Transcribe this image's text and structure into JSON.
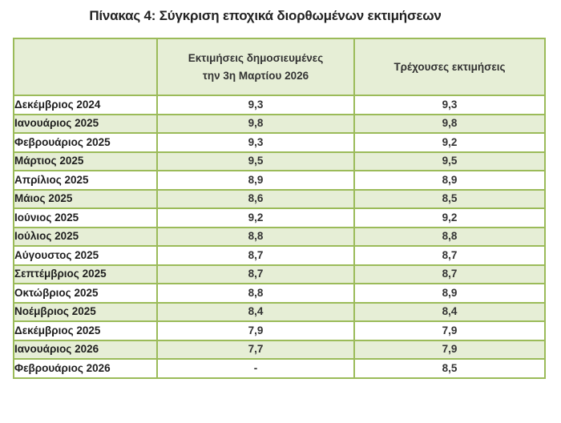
{
  "title": "Πίνακας 4: Σύγκριση εποχικά διορθωμένων εκτιμήσεων",
  "colors": {
    "border": "#9bbb59",
    "alt_fill": "#e6eed6",
    "white_fill": "#ffffff"
  },
  "table": {
    "headers": [
      "",
      "Εκτιμήσεις δημοσιευμένες την 3η Μαρτίου 2026",
      "Τρέχουσες εκτιμήσεις"
    ],
    "header_lines": {
      "col2_line1": "Εκτιμήσεις δημοσιευμένες",
      "col2_line2": "την 3η Μαρτίου 2026",
      "col3": "Τρέχουσες εκτιμήσεις"
    },
    "rows": [
      {
        "month": "Δεκέμβριος 2024",
        "published": "9,3",
        "current": "9,3"
      },
      {
        "month": "Ιανουάριος 2025",
        "published": "9,8",
        "current": "9,8"
      },
      {
        "month": "Φεβρουάριος 2025",
        "published": "9,3",
        "current": "9,2"
      },
      {
        "month": "Μάρτιος 2025",
        "published": "9,5",
        "current": "9,5"
      },
      {
        "month": "Απρίλιος 2025",
        "published": "8,9",
        "current": "8,9"
      },
      {
        "month": "Μάιος 2025",
        "published": "8,6",
        "current": "8,5"
      },
      {
        "month": "Ιούνιος 2025",
        "published": "9,2",
        "current": "9,2"
      },
      {
        "month": "Ιούλιος 2025",
        "published": "8,8",
        "current": "8,8"
      },
      {
        "month": "Αύγουστος 2025",
        "published": "8,7",
        "current": "8,7"
      },
      {
        "month": "Σεπτέμβριος 2025",
        "published": "8,7",
        "current": "8,7"
      },
      {
        "month": "Οκτώβριος 2025",
        "published": "8,8",
        "current": "8,9"
      },
      {
        "month": "Νοέμβριος 2025",
        "published": "8,4",
        "current": "8,4"
      },
      {
        "month": "Δεκέμβριος 2025",
        "published": "7,9",
        "current": "7,9"
      },
      {
        "month": "Ιανουάριος 2026",
        "published": "7,7",
        "current": "7,9"
      },
      {
        "month": "Φεβρουάριος 2026",
        "published": "-",
        "current": "8,5"
      }
    ]
  }
}
